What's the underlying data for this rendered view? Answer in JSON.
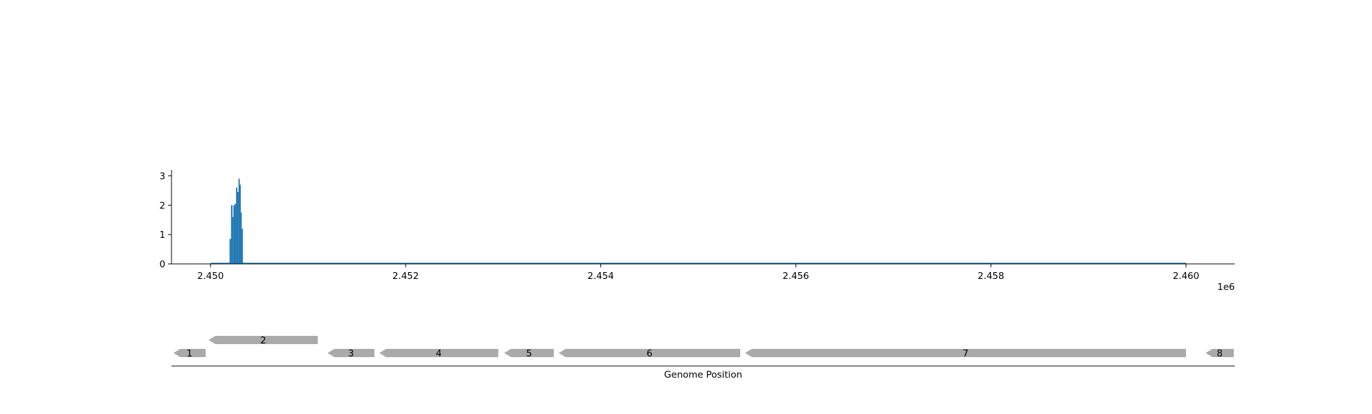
{
  "chart_data": [
    {
      "type": "bar",
      "title": "",
      "xlabel": "",
      "ylabel": "",
      "x_offset_label": "1e6",
      "xlim": [
        2449600,
        2460500
      ],
      "ylim": [
        0,
        3.2
      ],
      "grid": false,
      "xticks": [
        {
          "value": 2450000,
          "label": "2.450"
        },
        {
          "value": 2452000,
          "label": "2.452"
        },
        {
          "value": 2454000,
          "label": "2.454"
        },
        {
          "value": 2456000,
          "label": "2.456"
        },
        {
          "value": 2458000,
          "label": "2.458"
        },
        {
          "value": 2460000,
          "label": "2.460"
        }
      ],
      "yticks": [
        {
          "value": 0,
          "label": "0"
        },
        {
          "value": 1,
          "label": "1"
        },
        {
          "value": 2,
          "label": "2"
        },
        {
          "value": 3,
          "label": "3"
        }
      ],
      "color": "#1f77b4",
      "bins": [
        {
          "start": 2450195,
          "end": 2450210,
          "value": 0.85
        },
        {
          "start": 2450210,
          "end": 2450225,
          "value": 2.0
        },
        {
          "start": 2450225,
          "end": 2450235,
          "value": 1.6
        },
        {
          "start": 2450235,
          "end": 2450250,
          "value": 2.0
        },
        {
          "start": 2450250,
          "end": 2450262,
          "value": 2.05
        },
        {
          "start": 2450262,
          "end": 2450275,
          "value": 2.6
        },
        {
          "start": 2450275,
          "end": 2450287,
          "value": 2.45
        },
        {
          "start": 2450287,
          "end": 2450300,
          "value": 2.9
        },
        {
          "start": 2450300,
          "end": 2450310,
          "value": 2.7
        },
        {
          "start": 2450310,
          "end": 2450320,
          "value": 1.75
        },
        {
          "start": 2450320,
          "end": 2450332,
          "value": 1.2
        }
      ],
      "baseline": {
        "start": 2450000,
        "end": 2460000,
        "value": 0
      }
    },
    {
      "type": "gene_track",
      "xlabel": "Genome Position",
      "color": "#aaaaaa",
      "genes": [
        {
          "label": "1",
          "start": 2449620,
          "end": 2449950,
          "strand": "-",
          "row": 0
        },
        {
          "label": "2",
          "start": 2449980,
          "end": 2451100,
          "strand": "-",
          "row": 1
        },
        {
          "label": "3",
          "start": 2451200,
          "end": 2451680,
          "strand": "-",
          "row": 0
        },
        {
          "label": "4",
          "start": 2451730,
          "end": 2452950,
          "strand": "-",
          "row": 0
        },
        {
          "label": "5",
          "start": 2453010,
          "end": 2453520,
          "strand": "-",
          "row": 0
        },
        {
          "label": "6",
          "start": 2453570,
          "end": 2455430,
          "strand": "-",
          "row": 0
        },
        {
          "label": "7",
          "start": 2455480,
          "end": 2460000,
          "strand": "-",
          "row": 0
        },
        {
          "label": "8",
          "start": 2460200,
          "end": 2460490,
          "strand": "-",
          "row": 0
        }
      ]
    }
  ]
}
